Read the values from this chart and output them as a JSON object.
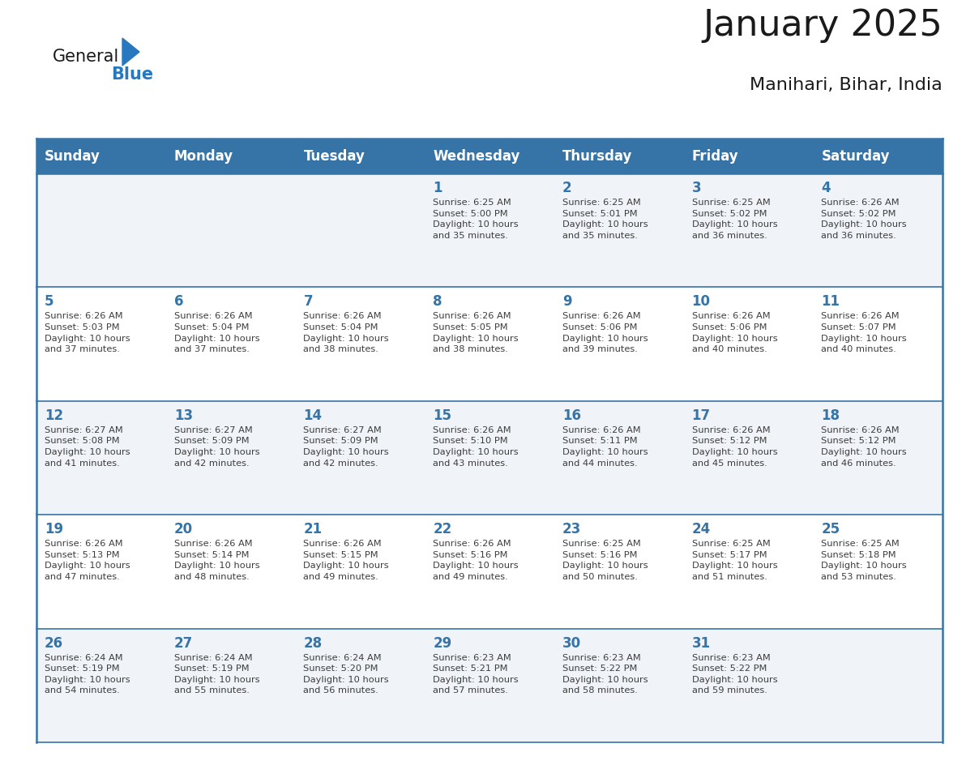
{
  "title": "January 2025",
  "subtitle": "Manihari, Bihar, India",
  "header_color": "#3674a8",
  "header_text_color": "#ffffff",
  "day_number_color": "#3674a8",
  "info_text_color": "#3d3d3d",
  "border_color": "#3674a8",
  "row_bg_even": "#f0f4f8",
  "row_bg_odd": "#ffffff",
  "days_of_week": [
    "Sunday",
    "Monday",
    "Tuesday",
    "Wednesday",
    "Thursday",
    "Friday",
    "Saturday"
  ],
  "calendar_data": [
    [
      {
        "day": 0,
        "info": ""
      },
      {
        "day": 0,
        "info": ""
      },
      {
        "day": 0,
        "info": ""
      },
      {
        "day": 1,
        "info": "Sunrise: 6:25 AM\nSunset: 5:00 PM\nDaylight: 10 hours\nand 35 minutes."
      },
      {
        "day": 2,
        "info": "Sunrise: 6:25 AM\nSunset: 5:01 PM\nDaylight: 10 hours\nand 35 minutes."
      },
      {
        "day": 3,
        "info": "Sunrise: 6:25 AM\nSunset: 5:02 PM\nDaylight: 10 hours\nand 36 minutes."
      },
      {
        "day": 4,
        "info": "Sunrise: 6:26 AM\nSunset: 5:02 PM\nDaylight: 10 hours\nand 36 minutes."
      }
    ],
    [
      {
        "day": 5,
        "info": "Sunrise: 6:26 AM\nSunset: 5:03 PM\nDaylight: 10 hours\nand 37 minutes."
      },
      {
        "day": 6,
        "info": "Sunrise: 6:26 AM\nSunset: 5:04 PM\nDaylight: 10 hours\nand 37 minutes."
      },
      {
        "day": 7,
        "info": "Sunrise: 6:26 AM\nSunset: 5:04 PM\nDaylight: 10 hours\nand 38 minutes."
      },
      {
        "day": 8,
        "info": "Sunrise: 6:26 AM\nSunset: 5:05 PM\nDaylight: 10 hours\nand 38 minutes."
      },
      {
        "day": 9,
        "info": "Sunrise: 6:26 AM\nSunset: 5:06 PM\nDaylight: 10 hours\nand 39 minutes."
      },
      {
        "day": 10,
        "info": "Sunrise: 6:26 AM\nSunset: 5:06 PM\nDaylight: 10 hours\nand 40 minutes."
      },
      {
        "day": 11,
        "info": "Sunrise: 6:26 AM\nSunset: 5:07 PM\nDaylight: 10 hours\nand 40 minutes."
      }
    ],
    [
      {
        "day": 12,
        "info": "Sunrise: 6:27 AM\nSunset: 5:08 PM\nDaylight: 10 hours\nand 41 minutes."
      },
      {
        "day": 13,
        "info": "Sunrise: 6:27 AM\nSunset: 5:09 PM\nDaylight: 10 hours\nand 42 minutes."
      },
      {
        "day": 14,
        "info": "Sunrise: 6:27 AM\nSunset: 5:09 PM\nDaylight: 10 hours\nand 42 minutes."
      },
      {
        "day": 15,
        "info": "Sunrise: 6:26 AM\nSunset: 5:10 PM\nDaylight: 10 hours\nand 43 minutes."
      },
      {
        "day": 16,
        "info": "Sunrise: 6:26 AM\nSunset: 5:11 PM\nDaylight: 10 hours\nand 44 minutes."
      },
      {
        "day": 17,
        "info": "Sunrise: 6:26 AM\nSunset: 5:12 PM\nDaylight: 10 hours\nand 45 minutes."
      },
      {
        "day": 18,
        "info": "Sunrise: 6:26 AM\nSunset: 5:12 PM\nDaylight: 10 hours\nand 46 minutes."
      }
    ],
    [
      {
        "day": 19,
        "info": "Sunrise: 6:26 AM\nSunset: 5:13 PM\nDaylight: 10 hours\nand 47 minutes."
      },
      {
        "day": 20,
        "info": "Sunrise: 6:26 AM\nSunset: 5:14 PM\nDaylight: 10 hours\nand 48 minutes."
      },
      {
        "day": 21,
        "info": "Sunrise: 6:26 AM\nSunset: 5:15 PM\nDaylight: 10 hours\nand 49 minutes."
      },
      {
        "day": 22,
        "info": "Sunrise: 6:26 AM\nSunset: 5:16 PM\nDaylight: 10 hours\nand 49 minutes."
      },
      {
        "day": 23,
        "info": "Sunrise: 6:25 AM\nSunset: 5:16 PM\nDaylight: 10 hours\nand 50 minutes."
      },
      {
        "day": 24,
        "info": "Sunrise: 6:25 AM\nSunset: 5:17 PM\nDaylight: 10 hours\nand 51 minutes."
      },
      {
        "day": 25,
        "info": "Sunrise: 6:25 AM\nSunset: 5:18 PM\nDaylight: 10 hours\nand 53 minutes."
      }
    ],
    [
      {
        "day": 26,
        "info": "Sunrise: 6:24 AM\nSunset: 5:19 PM\nDaylight: 10 hours\nand 54 minutes."
      },
      {
        "day": 27,
        "info": "Sunrise: 6:24 AM\nSunset: 5:19 PM\nDaylight: 10 hours\nand 55 minutes."
      },
      {
        "day": 28,
        "info": "Sunrise: 6:24 AM\nSunset: 5:20 PM\nDaylight: 10 hours\nand 56 minutes."
      },
      {
        "day": 29,
        "info": "Sunrise: 6:23 AM\nSunset: 5:21 PM\nDaylight: 10 hours\nand 57 minutes."
      },
      {
        "day": 30,
        "info": "Sunrise: 6:23 AM\nSunset: 5:22 PM\nDaylight: 10 hours\nand 58 minutes."
      },
      {
        "day": 31,
        "info": "Sunrise: 6:23 AM\nSunset: 5:22 PM\nDaylight: 10 hours\nand 59 minutes."
      },
      {
        "day": 0,
        "info": ""
      }
    ]
  ],
  "title_fontsize": 32,
  "subtitle_fontsize": 16,
  "header_fontsize": 12,
  "day_num_fontsize": 12,
  "info_fontsize": 8.2,
  "logo_general_fontsize": 15,
  "logo_blue_fontsize": 15
}
